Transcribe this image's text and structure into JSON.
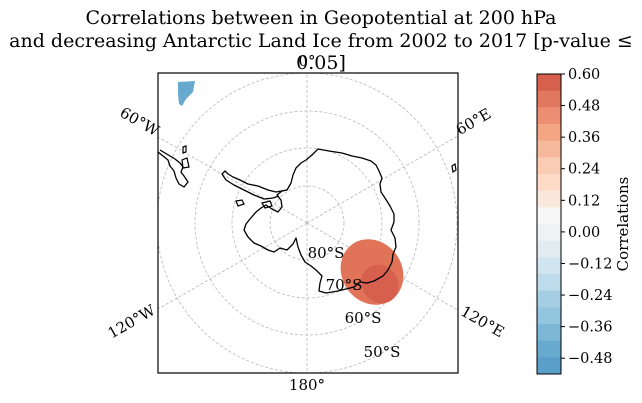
{
  "title": {
    "line1": "Correlations between in Geopotential at 200 hPa",
    "line2": "and decreasing Antarctic Land Ice from 2002 to 2017 [p-value ≤ 0.05]"
  },
  "map": {
    "projection": "south polar stereographic",
    "longitude_labels": {
      "top": "0°",
      "bottom": "180°",
      "upper_left": "60°W",
      "upper_right": "60°E",
      "lower_left": "120°W",
      "lower_right": "120°E"
    },
    "latitude_labels": [
      "80°S",
      "70°S",
      "60°S",
      "50°S"
    ],
    "gridlines": "dashed light gray",
    "significant_regions": [
      {
        "location": "near 60°W, 40°S (upper left corner)",
        "sign": "negative",
        "color": "#67a9cf"
      },
      {
        "location": "near 130°E, 70°S",
        "sign": "positive",
        "color": "#e07358"
      }
    ]
  },
  "colorbar": {
    "label": "Correlations",
    "min": -0.54,
    "max": 0.6,
    "tick_labels": [
      "0.60",
      "0.48",
      "0.36",
      "0.24",
      "0.12",
      "0.00",
      "−0.12",
      "−0.24",
      "−0.36",
      "−0.48"
    ],
    "colors_top_to_bottom": [
      "#d6604d",
      "#e1775f",
      "#ec8e73",
      "#f4a582",
      "#f7b99b",
      "#fbccb4",
      "#fddbc7",
      "#fbe8dd",
      "#f7f7f7",
      "#eef2f4",
      "#e1ecf1",
      "#d1e5f0",
      "#bddbea",
      "#a5cee3",
      "#92c5de",
      "#7db7d6",
      "#67a9cf",
      "#5a9fc9"
    ]
  }
}
